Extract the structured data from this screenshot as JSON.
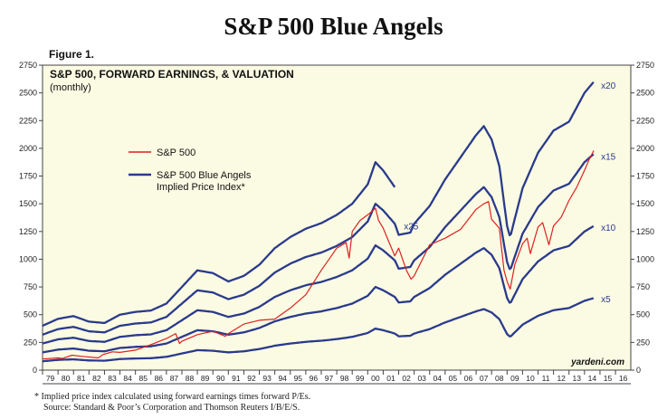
{
  "title": "S&P 500 Blue Angels",
  "figure_label": "Figure 1.",
  "footnote_1": "*  Implied price index calculated using forward earnings times forward P/Es.",
  "footnote_2": "Source: Standard & Poor’s Corporation and Thomson Reuters I/B/E/S.",
  "colors": {
    "background": "#fbfbe3",
    "sp500": "#e02020",
    "angels": "#2a3a8c"
  },
  "chart_data": {
    "type": "line",
    "title": "S&P 500, FORWARD EARNINGS, & VALUATION",
    "subtitle": "(monthly)",
    "xlabel": "",
    "ylabel": "",
    "xlim": [
      1979,
      2016.99
    ],
    "ylim": [
      0,
      2750
    ],
    "y_ticks": [
      0,
      250,
      500,
      750,
      1000,
      1250,
      1500,
      1750,
      2000,
      2250,
      2500,
      2750
    ],
    "x_tick_labels": [
      "79",
      "80",
      "81",
      "82",
      "83",
      "84",
      "85",
      "86",
      "87",
      "88",
      "89",
      "90",
      "91",
      "92",
      "93",
      "94",
      "95",
      "96",
      "97",
      "98",
      "99",
      "00",
      "01",
      "02",
      "03",
      "04",
      "05",
      "06",
      "07",
      "08",
      "09",
      "10",
      "11",
      "12",
      "13",
      "14",
      "15",
      "16"
    ],
    "x_tick_years": [
      1979,
      1980,
      1981,
      1982,
      1983,
      1984,
      1985,
      1986,
      1987,
      1988,
      1989,
      1990,
      1991,
      1992,
      1993,
      1994,
      1995,
      1996,
      1997,
      1998,
      1999,
      2000,
      2001,
      2002,
      2003,
      2004,
      2005,
      2006,
      2007,
      2008,
      2009,
      2010,
      2011,
      2012,
      2013,
      2014,
      2015,
      2016
    ],
    "legend": [
      "S&P 500",
      "S&P 500 Blue Angels",
      "Implied Price Index*"
    ],
    "watermark": "yardeni.com",
    "forward_earnings_years": [
      1979,
      1980,
      1981,
      1982,
      1983,
      1984,
      1985,
      1986,
      1987,
      1988,
      1989,
      1990,
      1991,
      1992,
      1993,
      1994,
      1995,
      1996,
      1997,
      1998,
      1999,
      2000,
      2000.5,
      2001,
      2001.75,
      2002,
      2002.75,
      2003,
      2004,
      2005,
      2006,
      2007,
      2007.5,
      2008,
      2008.5,
      2009,
      2009.2,
      2010,
      2011,
      2012,
      2013,
      2014,
      2014.6
    ],
    "forward_earnings": [
      16,
      18.5,
      19.5,
      17.5,
      17,
      20,
      21,
      21.5,
      24,
      30,
      36,
      35,
      32,
      34,
      38,
      44,
      48,
      51,
      53,
      56,
      60,
      67,
      75,
      72,
      66,
      61,
      62,
      66,
      74,
      86,
      96,
      106,
      110,
      104,
      92,
      65,
      60,
      82,
      98,
      108,
      112,
      125,
      130
    ],
    "series": [
      {
        "name": "x20",
        "multiple": 20,
        "end_year": 2014.6
      },
      {
        "name": "x15",
        "multiple": 15,
        "end_year": 2014.6
      },
      {
        "name": "x10",
        "multiple": 10,
        "end_year": 2014.6
      },
      {
        "name": "x5",
        "multiple": 5,
        "end_year": 2014.6
      },
      {
        "name": "x25",
        "multiple": 25,
        "end_year": 2001.75
      },
      {
        "name": "S&P 500",
        "x": [
          1979,
          1980,
          1980.3,
          1980.9,
          1981.5,
          1982.6,
          1982.9,
          1983.5,
          1984,
          1985,
          1986,
          1987,
          1987.6,
          1987.85,
          1988,
          1989,
          1990,
          1990.8,
          1991,
          1992,
          1993,
          1994,
          1995,
          1996,
          1997,
          1998,
          1998.6,
          1998.8,
          1999,
          1999.5,
          2000,
          2000.5,
          2000.7,
          2001,
          2001.3,
          2001.75,
          2002,
          2002.5,
          2002.8,
          2003,
          2003.5,
          2004,
          2005,
          2006,
          2007,
          2007.5,
          2007.8,
          2008,
          2008.5,
          2008.8,
          2009,
          2009.2,
          2009.5,
          2010,
          2010.3,
          2010.5,
          2011,
          2011.3,
          2011.7,
          2012,
          2012.5,
          2013,
          2013.5,
          2014,
          2014.3,
          2014.6
        ],
        "values": [
          100,
          110,
          105,
          135,
          125,
          110,
          140,
          165,
          160,
          180,
          230,
          285,
          330,
          240,
          260,
          320,
          350,
          305,
          330,
          415,
          450,
          460,
          560,
          680,
          900,
          1100,
          1150,
          1010,
          1250,
          1350,
          1400,
          1460,
          1350,
          1280,
          1180,
          1030,
          1100,
          900,
          820,
          850,
          990,
          1130,
          1190,
          1270,
          1450,
          1500,
          1520,
          1360,
          1280,
          900,
          800,
          730,
          950,
          1140,
          1190,
          1050,
          1290,
          1330,
          1130,
          1300,
          1380,
          1530,
          1650,
          1800,
          1900,
          1980
        ]
      }
    ],
    "series_labels": [
      "x20",
      "x15",
      "x10",
      "x25",
      "x5"
    ]
  }
}
